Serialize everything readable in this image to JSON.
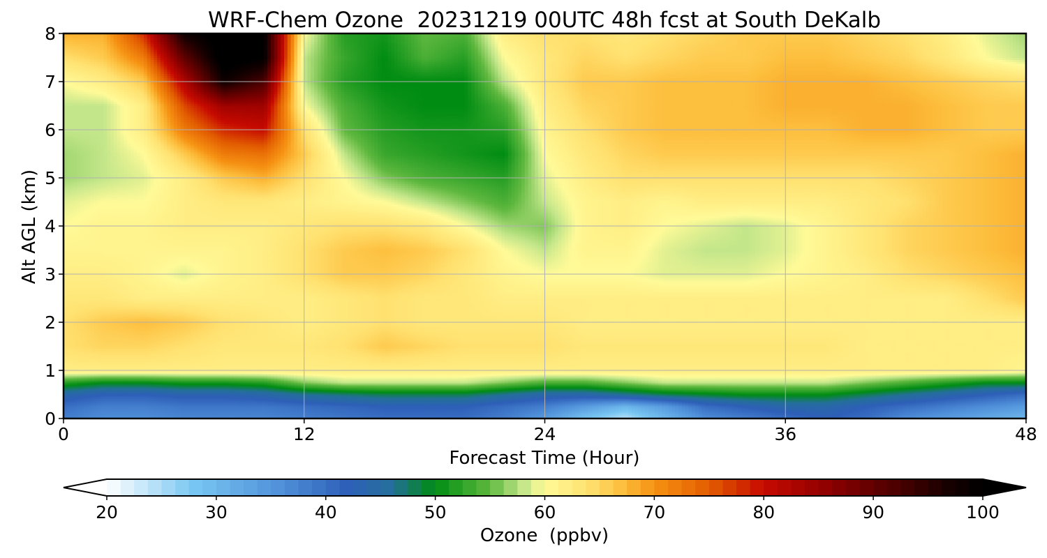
{
  "chart_data": {
    "type": "heatmap",
    "title": "WRF-Chem Ozone  20231219 00UTC 48h fcst at South DeKalb",
    "xlabel": "Forecast Time (Hour)",
    "ylabel": "Alt AGL (km)",
    "xlim": [
      0,
      48
    ],
    "ylim": [
      0,
      8
    ],
    "xticks": [
      0,
      12,
      24,
      36,
      48
    ],
    "yticks": [
      0,
      1,
      2,
      3,
      4,
      5,
      6,
      7,
      8
    ],
    "grid": true,
    "z_units": "ppbv",
    "x": [
      0,
      2,
      4,
      6,
      8,
      10,
      12,
      14,
      16,
      18,
      20,
      22,
      24,
      26,
      28,
      30,
      32,
      34,
      36,
      38,
      40,
      42,
      44,
      46,
      48
    ],
    "y": [
      0,
      0.25,
      0.5,
      0.75,
      1,
      1.5,
      2,
      2.5,
      3,
      3.5,
      4,
      4.5,
      5,
      5.5,
      6,
      6.5,
      7,
      7.5,
      8
    ],
    "z": [
      [
        38,
        36,
        36,
        37,
        37,
        37,
        38,
        39,
        40,
        40,
        40,
        38,
        34,
        28,
        24,
        30,
        36,
        38,
        40,
        42,
        40,
        36,
        34,
        32,
        30
      ],
      [
        40,
        38,
        38,
        39,
        39,
        39,
        40,
        41,
        42,
        42,
        42,
        40,
        38,
        34,
        30,
        34,
        40,
        42,
        44,
        44,
        42,
        40,
        38,
        36,
        34
      ],
      [
        44,
        42,
        42,
        43,
        43,
        44,
        46,
        47,
        48,
        48,
        48,
        46,
        44,
        44,
        46,
        48,
        49,
        50,
        50,
        50,
        48,
        46,
        44,
        42,
        40
      ],
      [
        52,
        50,
        50,
        51,
        51,
        52,
        56,
        58,
        58,
        58,
        58,
        56,
        54,
        54,
        56,
        58,
        58,
        58,
        58,
        58,
        56,
        54,
        52,
        50,
        50
      ],
      [
        62,
        62,
        62,
        62,
        62,
        62,
        62,
        62,
        62,
        62,
        62,
        62,
        62,
        62,
        62,
        62,
        62,
        62,
        62,
        62,
        62,
        62,
        62,
        62,
        61
      ],
      [
        64,
        65,
        65,
        64,
        63,
        63,
        63,
        64,
        66,
        65,
        64,
        64,
        64,
        63,
        63,
        63,
        63,
        63,
        63,
        63,
        62,
        62,
        62,
        62,
        62
      ],
      [
        64,
        66,
        67,
        66,
        64,
        63,
        62,
        63,
        64,
        63,
        63,
        63,
        63,
        62,
        62,
        62,
        62,
        62,
        62,
        62,
        62,
        62,
        62,
        62,
        62
      ],
      [
        63,
        63,
        62,
        62,
        62,
        62,
        62,
        63,
        64,
        63,
        63,
        62,
        62,
        62,
        62,
        62,
        62,
        62,
        62,
        62,
        62,
        62,
        62,
        64,
        66
      ],
      [
        62,
        62,
        61,
        59,
        61,
        62,
        64,
        66,
        66,
        65,
        63,
        61,
        60,
        60,
        60,
        59,
        59,
        59,
        60,
        61,
        62,
        64,
        65,
        66,
        67
      ],
      [
        61,
        61,
        61,
        61,
        61,
        62,
        64,
        66,
        67,
        66,
        64,
        60,
        58,
        61,
        61,
        59,
        58,
        58,
        59,
        61,
        63,
        65,
        66,
        67,
        68
      ],
      [
        60,
        61,
        61,
        62,
        62,
        62,
        63,
        64,
        64,
        63,
        60,
        57,
        56,
        61,
        62,
        60,
        59,
        58,
        59,
        61,
        63,
        65,
        66,
        67,
        68
      ],
      [
        59,
        60,
        60,
        62,
        63,
        63,
        62,
        61,
        60,
        58,
        56,
        54,
        58,
        61,
        62,
        61,
        62,
        62,
        62,
        62,
        63,
        64,
        66,
        67,
        68
      ],
      [
        57,
        58,
        59,
        62,
        66,
        68,
        64,
        60,
        56,
        54,
        53,
        52,
        59,
        62,
        64,
        64,
        64,
        64,
        64,
        64,
        64,
        65,
        66,
        67,
        68
      ],
      [
        57,
        58,
        60,
        66,
        72,
        73,
        66,
        58,
        53,
        52,
        51,
        50,
        60,
        63,
        65,
        66,
        66,
        66,
        66,
        66,
        66,
        66,
        66,
        67,
        68
      ],
      [
        58,
        58,
        62,
        72,
        78,
        80,
        64,
        55,
        52,
        51,
        51,
        52,
        61,
        64,
        66,
        67,
        67,
        67,
        67,
        67,
        68,
        68,
        67,
        66,
        66
      ],
      [
        58,
        58,
        62,
        76,
        84,
        84,
        60,
        54,
        51,
        50,
        50,
        54,
        62,
        65,
        66,
        67,
        67,
        67,
        68,
        68,
        68,
        68,
        67,
        66,
        66
      ],
      [
        60,
        62,
        66,
        82,
        98,
        92,
        58,
        52,
        50,
        50,
        50,
        58,
        63,
        66,
        66,
        67,
        67,
        67,
        68,
        68,
        68,
        67,
        66,
        65,
        64
      ],
      [
        64,
        66,
        72,
        90,
        102,
        100,
        58,
        53,
        50,
        54,
        52,
        60,
        63,
        65,
        64,
        65,
        66,
        66,
        67,
        67,
        66,
        65,
        63,
        60,
        58
      ],
      [
        68,
        68,
        78,
        98,
        102,
        100,
        60,
        52,
        51,
        55,
        54,
        62,
        64,
        64,
        63,
        64,
        65,
        66,
        66,
        66,
        65,
        64,
        62,
        59,
        57
      ]
    ],
    "colorbar": {
      "label": "Ozone  (ppbv)",
      "min": 20,
      "max": 100,
      "ticks": [
        20,
        30,
        40,
        50,
        60,
        70,
        80,
        90,
        100
      ],
      "extend": "both",
      "stops": [
        {
          "v": 20,
          "c": "#ffffff"
        },
        {
          "v": 28,
          "c": "#78c6f2"
        },
        {
          "v": 36,
          "c": "#4f8fd9"
        },
        {
          "v": 42,
          "c": "#2e5fb8"
        },
        {
          "v": 46,
          "c": "#246f9a"
        },
        {
          "v": 50,
          "c": "#008c12"
        },
        {
          "v": 55,
          "c": "#5fb83f"
        },
        {
          "v": 58,
          "c": "#c3e68a"
        },
        {
          "v": 60,
          "c": "#fffa98"
        },
        {
          "v": 64,
          "c": "#ffe170"
        },
        {
          "v": 67,
          "c": "#fdbf3e"
        },
        {
          "v": 70,
          "c": "#f69213"
        },
        {
          "v": 75,
          "c": "#e25c00"
        },
        {
          "v": 80,
          "c": "#c60a00"
        },
        {
          "v": 86,
          "c": "#8c0000"
        },
        {
          "v": 92,
          "c": "#4d0000"
        },
        {
          "v": 97,
          "c": "#160000"
        },
        {
          "v": 100,
          "c": "#000000"
        }
      ]
    }
  }
}
